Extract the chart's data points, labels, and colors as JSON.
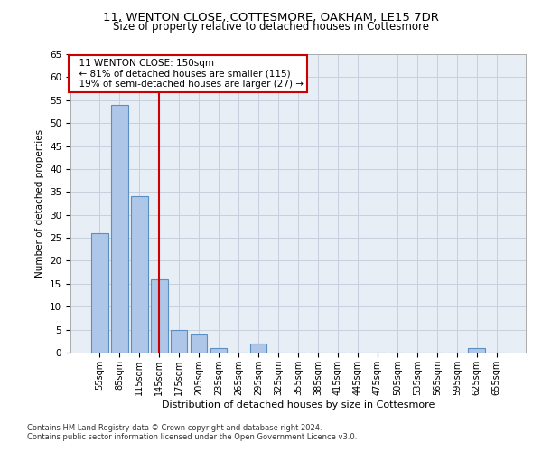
{
  "title_line1": "11, WENTON CLOSE, COTTESMORE, OAKHAM, LE15 7DR",
  "title_line2": "Size of property relative to detached houses in Cottesmore",
  "xlabel": "Distribution of detached houses by size in Cottesmore",
  "ylabel": "Number of detached properties",
  "categories": [
    "55sqm",
    "85sqm",
    "115sqm",
    "145sqm",
    "175sqm",
    "205sqm",
    "235sqm",
    "265sqm",
    "295sqm",
    "325sqm",
    "355sqm",
    "385sqm",
    "415sqm",
    "445sqm",
    "475sqm",
    "505sqm",
    "535sqm",
    "565sqm",
    "595sqm",
    "625sqm",
    "655sqm"
  ],
  "bar_values": [
    26,
    54,
    34,
    16,
    5,
    4,
    1,
    0,
    2,
    0,
    0,
    0,
    0,
    0,
    0,
    0,
    0,
    0,
    0,
    1,
    0
  ],
  "bar_color": "#aec6e8",
  "bar_edge_color": "#5a8fc2",
  "bar_edge_width": 0.8,
  "vline_x": 3,
  "vline_color": "#cc0000",
  "annotation_title": "11 WENTON CLOSE: 150sqm",
  "annotation_line1": "← 81% of detached houses are smaller (115)",
  "annotation_line2": "19% of semi-detached houses are larger (27) →",
  "annotation_box_color": "#cc0000",
  "annotation_bg": "#ffffff",
  "ylim": [
    0,
    65
  ],
  "yticks": [
    0,
    5,
    10,
    15,
    20,
    25,
    30,
    35,
    40,
    45,
    50,
    55,
    60,
    65
  ],
  "grid_color": "#c8d0de",
  "background_color": "#e8eef6",
  "footnote1": "Contains HM Land Registry data © Crown copyright and database right 2024.",
  "footnote2": "Contains public sector information licensed under the Open Government Licence v3.0."
}
